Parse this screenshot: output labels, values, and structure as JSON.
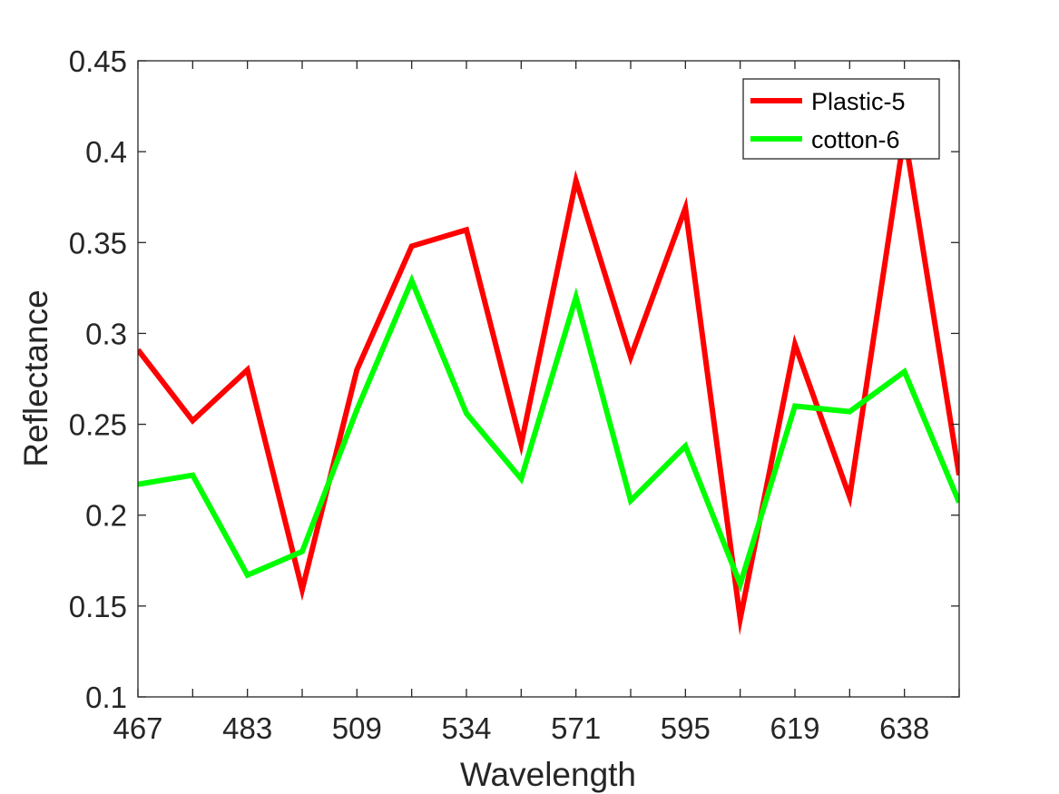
{
  "chart_data": {
    "type": "line",
    "xlabel": "Wavelength",
    "ylabel": "Reflectance",
    "ylim": [
      0.1,
      0.45
    ],
    "yticks": [
      "0.1",
      "0.15",
      "0.2",
      "0.25",
      "0.3",
      "0.35",
      "0.4",
      "0.45"
    ],
    "xtick_labels": [
      "467",
      "483",
      "509",
      "534",
      "571",
      "595",
      "619",
      "638"
    ],
    "x_categories": [
      "467",
      "",
      "483",
      "",
      "509",
      "",
      "534",
      "",
      "571",
      "",
      "595",
      "",
      "619",
      "",
      "638",
      ""
    ],
    "grid": false,
    "legend_position": "top-right",
    "series": [
      {
        "name": "Plastic-5",
        "color": "#ff0000",
        "values": [
          0.291,
          0.252,
          0.28,
          0.159,
          0.28,
          0.348,
          0.357,
          0.239,
          0.384,
          0.287,
          0.369,
          0.143,
          0.294,
          0.21,
          0.41,
          0.222
        ]
      },
      {
        "name": "cotton-6",
        "color": "#00ff00",
        "values": [
          0.217,
          0.222,
          0.167,
          0.18,
          0.258,
          0.329,
          0.256,
          0.22,
          0.32,
          0.208,
          0.238,
          0.162,
          0.26,
          0.257,
          0.279,
          0.207
        ]
      }
    ]
  }
}
